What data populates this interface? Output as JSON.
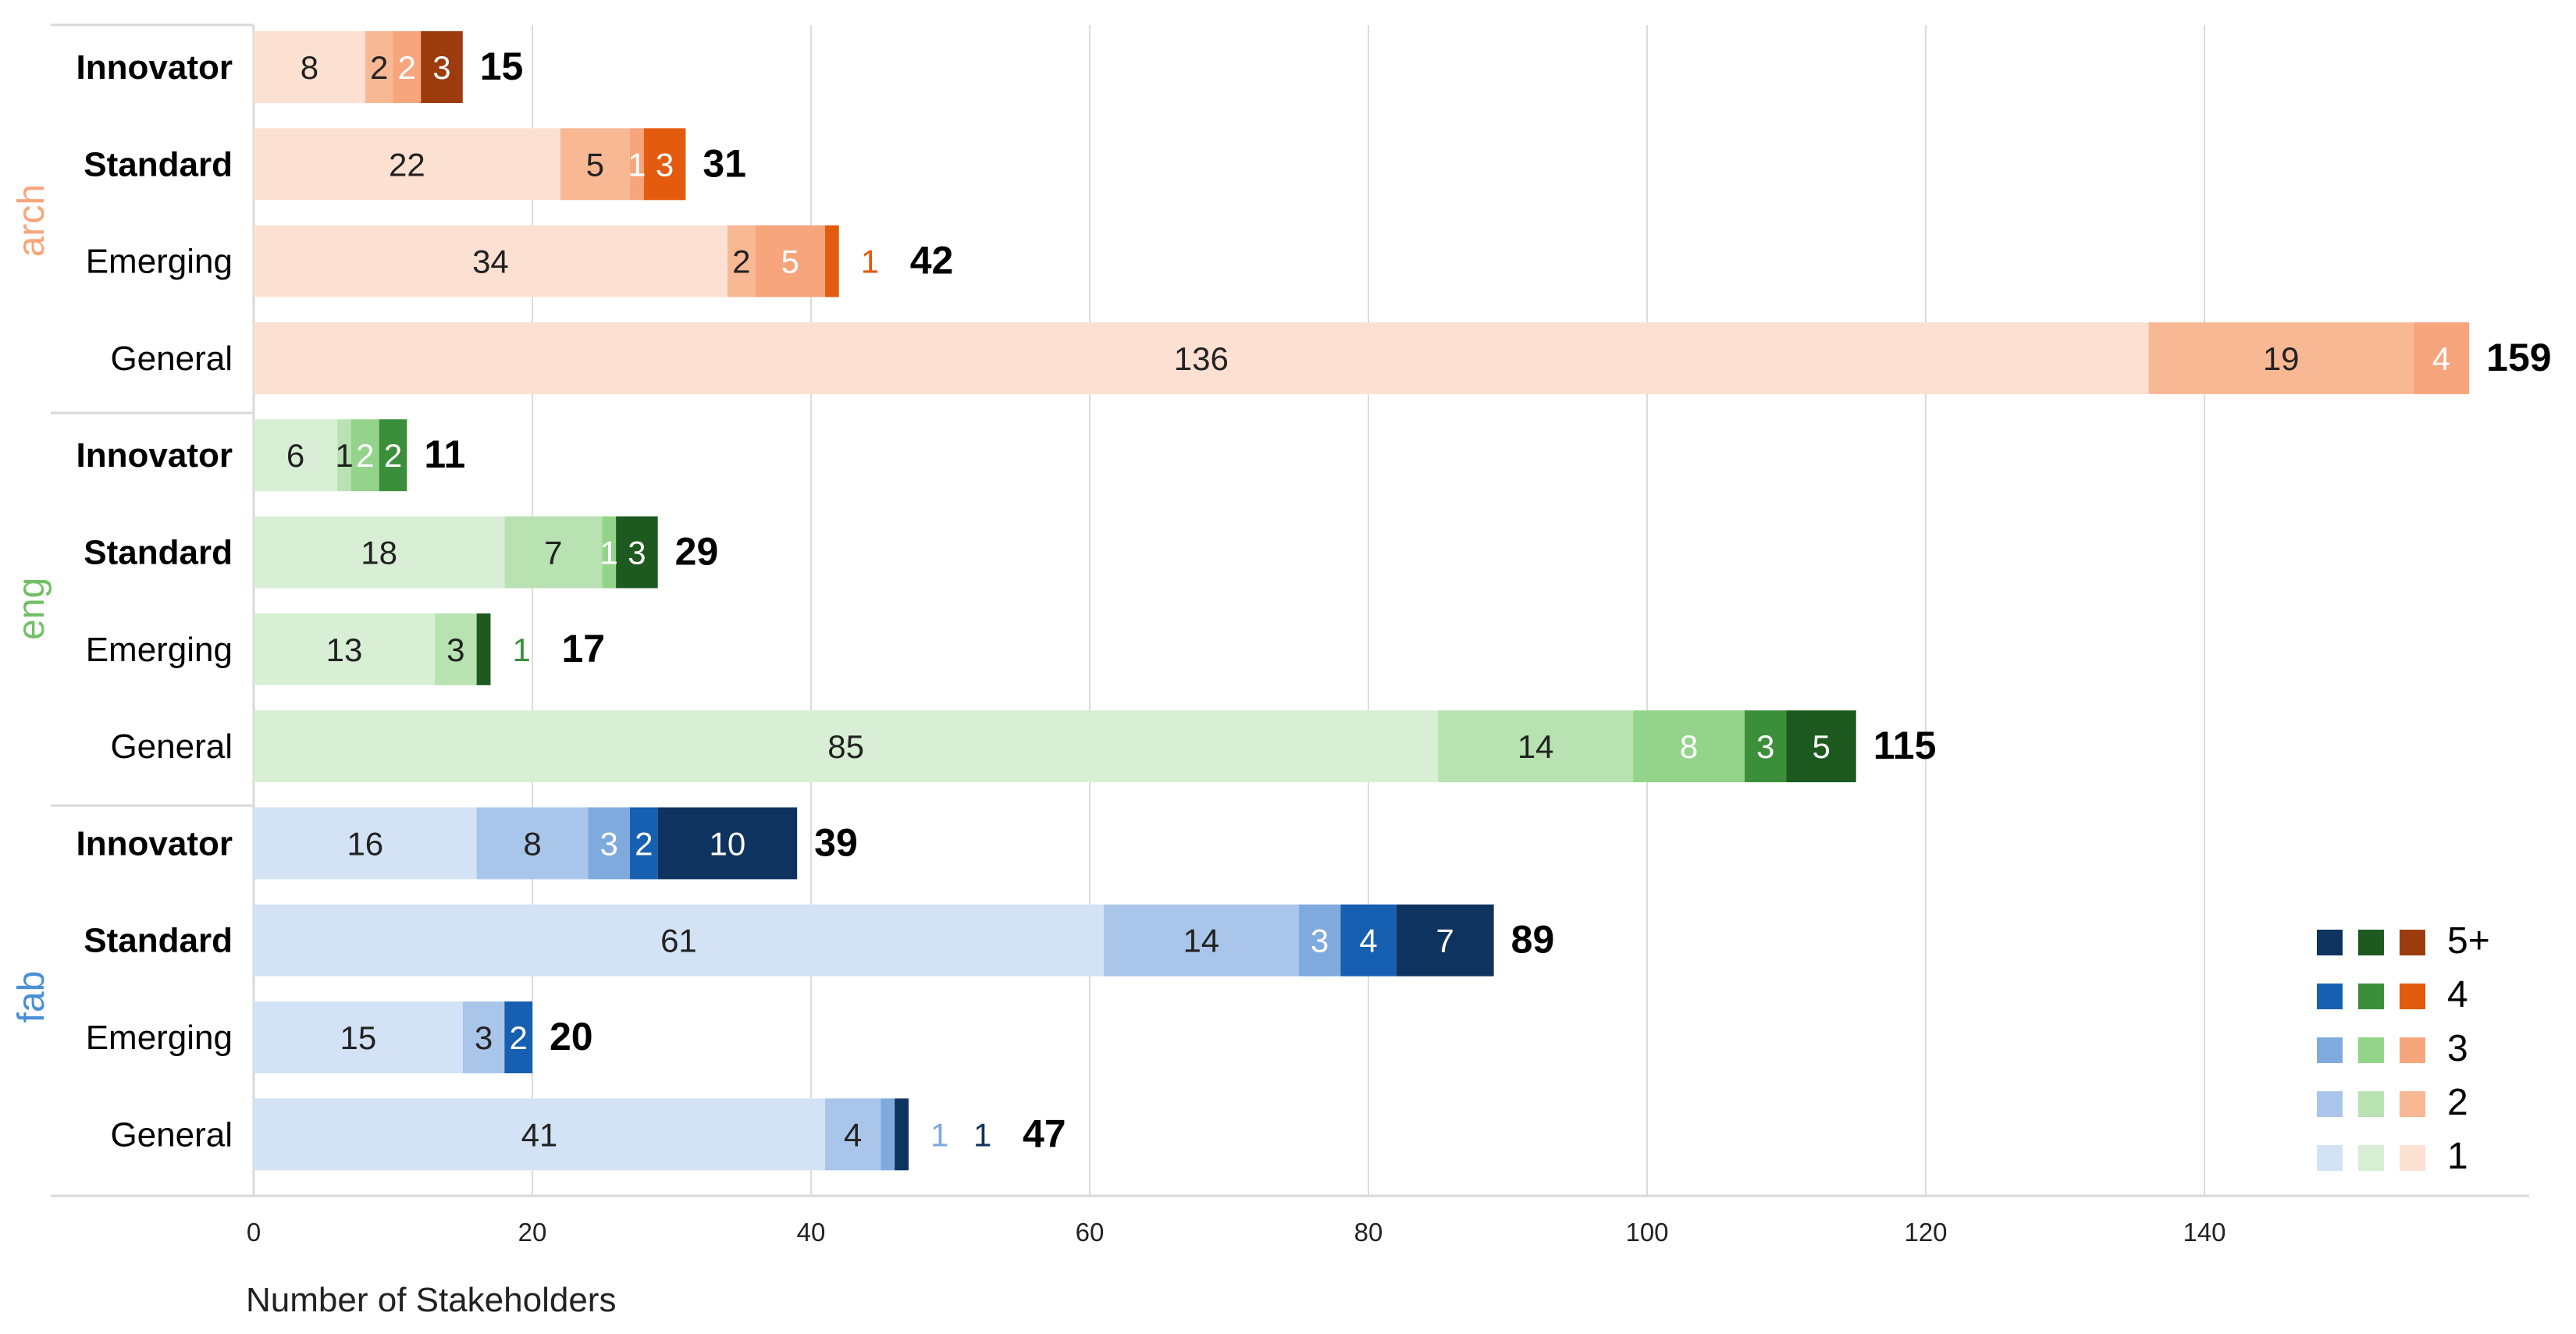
{
  "chart_data": {
    "type": "bar",
    "orientation": "horizontal",
    "stacked": true,
    "title": "",
    "xlabel": "Number of Stakeholders",
    "ylabel": "",
    "xlim": [
      0,
      160
    ],
    "x_ticks": [
      0,
      20,
      40,
      60,
      80,
      100,
      120,
      140
    ],
    "grid": "vertical",
    "legend_position": "bottom-right",
    "segment_levels": [
      "1",
      "2",
      "3",
      "4",
      "5+"
    ],
    "legend": {
      "entries": [
        "5+",
        "4",
        "3",
        "2",
        "1"
      ]
    },
    "colors": {
      "arch": [
        "#fce1d3",
        "#f9b894",
        "#f7a57c",
        "#e35b0e",
        "#9c3c0e"
      ],
      "eng": [
        "#d8efd6",
        "#b8e2b1",
        "#93d48a",
        "#3b8f3b",
        "#1e5a20"
      ],
      "fab": [
        "#d3e3f5",
        "#a9c6ea",
        "#7faade",
        "#175fb0",
        "#0e335f"
      ],
      "arch_label": "#f7a57c",
      "eng_label": "#72c066",
      "fab_label": "#4a8fd6",
      "grid": "#dcdcdc",
      "divider": "#d9d9d9"
    },
    "groups": [
      {
        "name": "arch",
        "label": "arch",
        "categories": [
          {
            "label": "Innovator",
            "bold": true,
            "values": [
              8,
              2,
              2,
              0,
              3
            ],
            "segment_labels": [
              "8",
              "2",
              "2",
              "",
              "3"
            ],
            "outside_labels": [],
            "total": "15"
          },
          {
            "label": "Standard",
            "bold": true,
            "values": [
              22,
              5,
              1,
              3,
              0
            ],
            "segment_labels": [
              "22",
              "5",
              "1",
              "3",
              ""
            ],
            "outside_labels": [],
            "total": "31"
          },
          {
            "label": "Emerging",
            "bold": false,
            "values": [
              34,
              2,
              5,
              1,
              0
            ],
            "segment_labels": [
              "34",
              "2",
              "5",
              "",
              ""
            ],
            "outside_labels": [
              "1"
            ],
            "total": "42"
          },
          {
            "label": "General",
            "bold": false,
            "values": [
              136,
              19,
              4,
              0,
              0
            ],
            "segment_labels": [
              "136",
              "19",
              "4",
              "",
              ""
            ],
            "outside_labels": [],
            "total": "159"
          }
        ]
      },
      {
        "name": "eng",
        "label": "eng",
        "categories": [
          {
            "label": "Innovator",
            "bold": true,
            "values": [
              6,
              1,
              2,
              2,
              0
            ],
            "segment_labels": [
              "6",
              "1",
              "2",
              "2",
              ""
            ],
            "outside_labels": [],
            "total": "11"
          },
          {
            "label": "Standard",
            "bold": true,
            "values": [
              18,
              7,
              1,
              0,
              3
            ],
            "segment_labels": [
              "18",
              "7",
              "1",
              "",
              "3"
            ],
            "outside_labels": [],
            "total": "29"
          },
          {
            "label": "Emerging",
            "bold": false,
            "values": [
              13,
              3,
              0,
              0,
              1
            ],
            "segment_labels": [
              "13",
              "3",
              "",
              "",
              ""
            ],
            "outside_labels": [
              "1"
            ],
            "total": "17"
          },
          {
            "label": "General",
            "bold": false,
            "values": [
              85,
              14,
              8,
              3,
              5
            ],
            "segment_labels": [
              "85",
              "14",
              "8",
              "3",
              "5"
            ],
            "outside_labels": [],
            "total": "115"
          }
        ]
      },
      {
        "name": "fab",
        "label": "fab",
        "categories": [
          {
            "label": "Innovator",
            "bold": true,
            "values": [
              16,
              8,
              3,
              2,
              10
            ],
            "segment_labels": [
              "16",
              "8",
              "3",
              "2",
              "10"
            ],
            "outside_labels": [],
            "total": "39"
          },
          {
            "label": "Standard",
            "bold": true,
            "values": [
              61,
              14,
              3,
              4,
              7
            ],
            "segment_labels": [
              "61",
              "14",
              "3",
              "4",
              "7"
            ],
            "outside_labels": [],
            "total": "89"
          },
          {
            "label": "Emerging",
            "bold": false,
            "values": [
              15,
              3,
              0,
              2,
              0
            ],
            "segment_labels": [
              "15",
              "3",
              "",
              "2",
              ""
            ],
            "outside_labels": [],
            "total": "20"
          },
          {
            "label": "General",
            "bold": false,
            "values": [
              41,
              4,
              1,
              0,
              1
            ],
            "segment_labels": [
              "41",
              "4",
              "",
              "",
              ""
            ],
            "outside_labels": [
              "1",
              "1"
            ],
            "total": "47"
          }
        ]
      }
    ]
  }
}
